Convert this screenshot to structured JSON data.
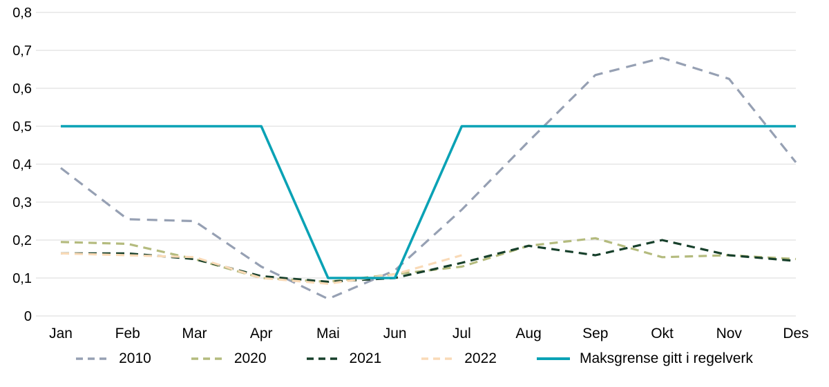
{
  "chart_data": {
    "type": "line",
    "categories": [
      "Jan",
      "Feb",
      "Mar",
      "Apr",
      "Mai",
      "Jun",
      "Jul",
      "Aug",
      "Sep",
      "Okt",
      "Nov",
      "Des"
    ],
    "ylim": [
      0,
      0.8
    ],
    "ytick_step": 0.1,
    "ytick_labels": [
      "0",
      "0,1",
      "0,2",
      "0,3",
      "0,4",
      "0,5",
      "0,6",
      "0,7",
      "0,8"
    ],
    "grid": "horizontal",
    "legend_position": "bottom",
    "colors": {
      "grid": "#d8d8d8",
      "axis_text": "#000000"
    },
    "series": [
      {
        "name": "2010",
        "color": "#96a0b3",
        "style": "dashed",
        "dash": "15 10",
        "width": 3.2,
        "values": [
          0.39,
          0.255,
          0.25,
          0.13,
          0.045,
          0.12,
          0.28,
          0.46,
          0.635,
          0.68,
          0.625,
          0.405
        ]
      },
      {
        "name": "2020",
        "color": "#b4bb7e",
        "style": "dashed",
        "dash": "12 8",
        "width": 3.2,
        "values": [
          0.195,
          0.19,
          0.15,
          0.1,
          0.09,
          0.11,
          0.13,
          0.185,
          0.205,
          0.155,
          0.16,
          0.15
        ]
      },
      {
        "name": "2021",
        "color": "#17402b",
        "style": "dashed",
        "dash": "12 8",
        "width": 3.2,
        "values": [
          0.165,
          0.165,
          0.15,
          0.105,
          0.09,
          0.1,
          0.14,
          0.185,
          0.16,
          0.2,
          0.16,
          0.145
        ]
      },
      {
        "name": "2022",
        "color": "#f9dab7",
        "style": "dashed",
        "dash": "12 8",
        "width": 3.2,
        "values": [
          0.165,
          0.16,
          0.155,
          0.1,
          0.085,
          0.11,
          0.16,
          null,
          null,
          null,
          null,
          null
        ]
      },
      {
        "name": "Maksgrense gitt i regelverk",
        "color": "#0aa2b5",
        "style": "solid",
        "dash": "",
        "width": 3.6,
        "values": [
          0.5,
          0.5,
          0.5,
          0.5,
          0.1,
          0.1,
          0.5,
          0.5,
          0.5,
          0.5,
          0.5,
          0.5
        ]
      }
    ]
  }
}
